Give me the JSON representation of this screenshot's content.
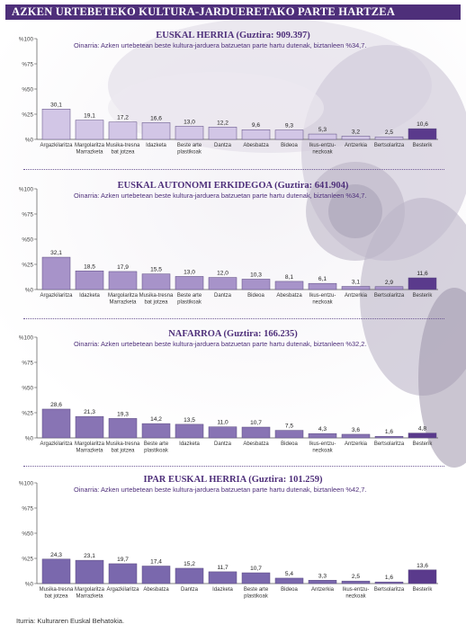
{
  "page": {
    "title": "AZKEN URTEBETEKO KULTURA-JARDUERETAKO PARTE HARTZEA",
    "source": "Iturria: Kulturaren Euskal Behatokia."
  },
  "chart_data": [
    {
      "type": "bar",
      "title": "EUSKAL HERRIA (Guztira: 909.397)",
      "subtitle": "Oinarria: Azken urtebetean beste kultura-jarduera batzuetan parte hartu dutenak, biztanleen %34,7.",
      "categories": [
        "Argazkilaritza",
        "Margolaritza\nMarrazketa",
        "Musika-tresna\nbat jotzea",
        "Idazketa",
        "Beste arte\nplastikoak",
        "Dantza",
        "Abesbatza",
        "Bideoa",
        "Ikus-entzu-\nnezkoak",
        "Antzerkia",
        "Bertsolaritza",
        "Besterik"
      ],
      "values": [
        30.1,
        19.1,
        17.2,
        16.6,
        13.0,
        12.2,
        9.6,
        9.3,
        5.3,
        3.2,
        2.5,
        10.6
      ],
      "value_labels": [
        "30,1",
        "19,1",
        "17,2",
        "16,6",
        "13,0",
        "12,2",
        "9,6",
        "9,3",
        "5,3",
        "3,2",
        "2,5",
        "10,6"
      ],
      "highlight": [
        false,
        false,
        false,
        false,
        false,
        false,
        false,
        false,
        false,
        false,
        false,
        true
      ],
      "yticks": [
        "%100",
        "%75",
        "%50",
        "%25",
        "%0"
      ],
      "ylim": [
        0,
        100
      ],
      "grid": false
    },
    {
      "type": "bar",
      "title": "EUSKAL AUTONOMI ERKIDEGOA (Guztira: 641.904)",
      "subtitle": "Oinarria: Azken urtebetean beste kultura-jarduera batzuetan parte hartu dutenak, biztanleen %34,7.",
      "categories": [
        "Argazkilaritza",
        "Idazketa",
        "Margolaritza\nMarrazketa",
        "Musika-tresna\nbat jotzea",
        "Beste arte\nplastikoak",
        "Dantza",
        "Bideoa",
        "Abesbatza",
        "Ikus-entzu-\nnezkoak",
        "Antzerkia",
        "Bertsolaritza",
        "Besterik"
      ],
      "values": [
        32.1,
        18.5,
        17.9,
        15.5,
        13.0,
        12.0,
        10.3,
        8.1,
        6.1,
        3.1,
        2.9,
        11.6
      ],
      "value_labels": [
        "32,1",
        "18,5",
        "17,9",
        "15,5",
        "13,0",
        "12,0",
        "10,3",
        "8,1",
        "6,1",
        "3,1",
        "2,9",
        "11,6"
      ],
      "highlight": [
        false,
        false,
        false,
        false,
        false,
        false,
        false,
        false,
        false,
        false,
        false,
        true
      ],
      "yticks": [
        "%100",
        "%75",
        "%50",
        "%25",
        "%0"
      ],
      "ylim": [
        0,
        100
      ],
      "grid": false
    },
    {
      "type": "bar",
      "title": "NAFARROA (Guztira: 166.235)",
      "subtitle": "Oinarria: Azken urtebetean beste kultura-jarduera batzuetan parte hartu dutenak, biztanleen %32,2.",
      "categories": [
        "Argazkilaritza",
        "Margolaritza\nMarrazketa",
        "Musika-tresna\nbat jotzea",
        "Beste arte\nplastikoak",
        "Idazketa",
        "Dantza",
        "Abesbatza",
        "Bideoa",
        "Ikus-entzu-\nnezkoak",
        "Antzerkia",
        "Bertsolaritza",
        "Besterik"
      ],
      "values": [
        28.6,
        21.3,
        19.3,
        14.2,
        13.5,
        11.0,
        10.7,
        7.5,
        4.3,
        3.6,
        1.6,
        4.8
      ],
      "value_labels": [
        "28,6",
        "21,3",
        "19,3",
        "14,2",
        "13,5",
        "11,0",
        "10,7",
        "7,5",
        "4,3",
        "3,6",
        "1,6",
        "4,8"
      ],
      "highlight": [
        false,
        false,
        false,
        false,
        false,
        false,
        false,
        false,
        false,
        false,
        false,
        true
      ],
      "yticks": [
        "%100",
        "%75",
        "%50",
        "%25",
        "%0"
      ],
      "ylim": [
        0,
        100
      ],
      "grid": false
    },
    {
      "type": "bar",
      "title": "IPAR EUSKAL HERRIA (Guztira: 101.259)",
      "subtitle": "Oinarria: Azken urtebetean beste kultura-jarduera batzuetan parte hartu dutenak, biztanleen %42,7.",
      "categories": [
        "Musika-tresna\nbat jotzea",
        "Margolaritza\nMarrazketa",
        "Argazkilaritza",
        "Abesbatza",
        "Dantza",
        "Idazketa",
        "Beste arte\nplastikoak",
        "Bideoa",
        "Antzerkia",
        "Ikus-entzu-\nnezkoak",
        "Bertsolaritza",
        "Besterik"
      ],
      "values": [
        24.3,
        23.1,
        19.7,
        17.4,
        15.2,
        11.7,
        10.7,
        5.4,
        3.3,
        2.5,
        1.6,
        13.6
      ],
      "value_labels": [
        "24,3",
        "23,1",
        "19,7",
        "17,4",
        "15,2",
        "11,7",
        "10,7",
        "5,4",
        "3,3",
        "2,5",
        "1,6",
        "13,6"
      ],
      "highlight": [
        false,
        false,
        false,
        false,
        false,
        false,
        false,
        false,
        false,
        false,
        false,
        true
      ],
      "yticks": [
        "%100",
        "%75",
        "%50",
        "%25",
        "%0"
      ],
      "ylim": [
        0,
        100
      ],
      "grid": false
    }
  ],
  "colors": {
    "header_bg": "#4e2f7a",
    "title_text": "#4e2f7a",
    "panel_bars": [
      "#d2c6e6",
      "#a793c9",
      "#8874b4",
      "#7a68ad"
    ],
    "highlight_bars": [
      "#5a3a8c",
      "#5a3a8c",
      "#5a3a8c",
      "#5a3a8c"
    ],
    "bar_edge": "#5b4a80"
  }
}
